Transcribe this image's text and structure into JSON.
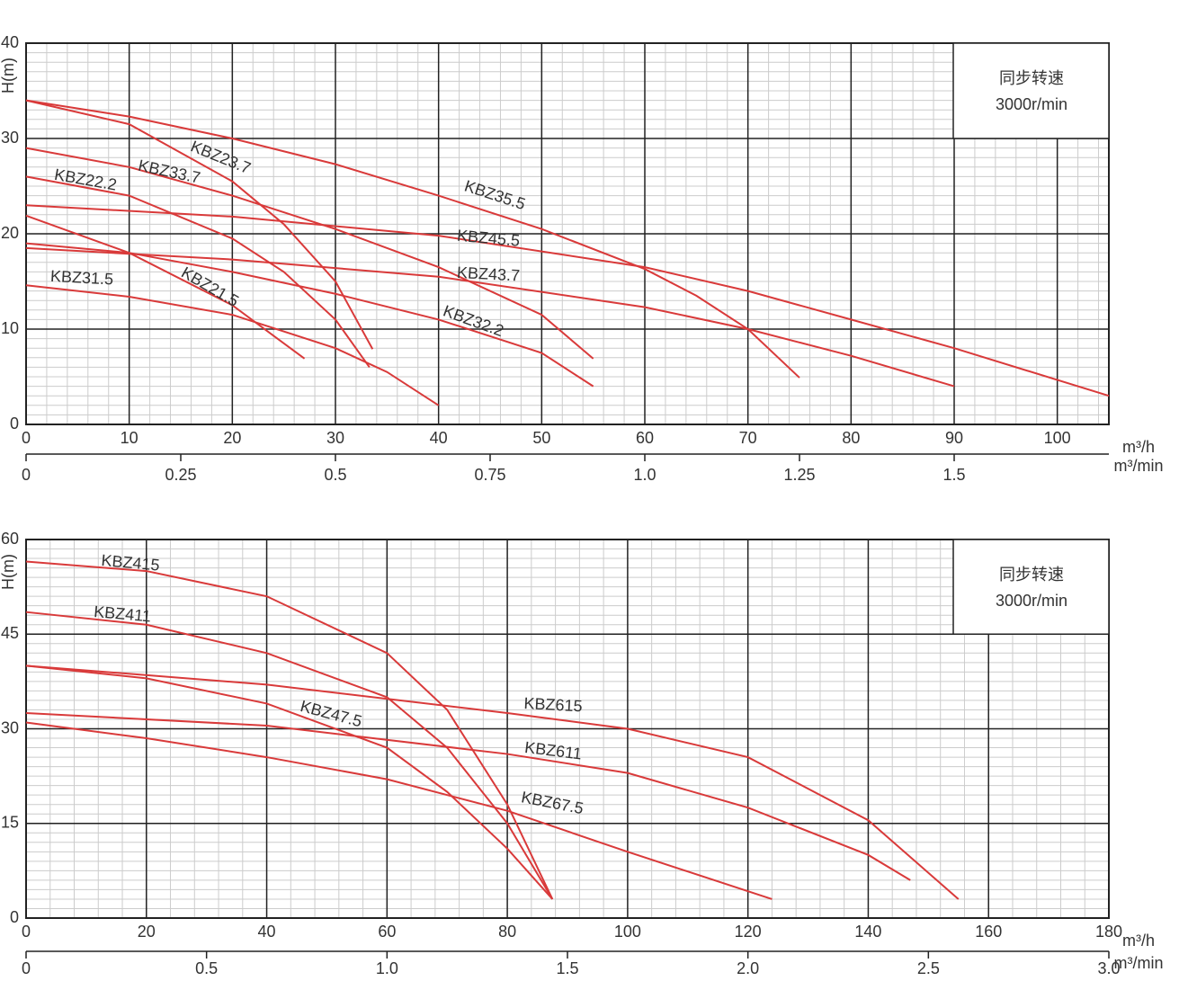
{
  "chart_data": [
    {
      "type": "line",
      "y_label": "H(m)",
      "x_label": "m³/h",
      "x2_label": "m³/min",
      "note": [
        "同步转速",
        "3000r/min"
      ],
      "grid": true,
      "xlim": [
        0,
        105
      ],
      "xticks": [
        0,
        10,
        20,
        30,
        40,
        50,
        60,
        70,
        80,
        90,
        100
      ],
      "ylim": [
        0,
        40
      ],
      "yticks": [
        0,
        10,
        20,
        30,
        40
      ],
      "x2lim": [
        0,
        1.75
      ],
      "x2ticks": [
        0,
        0.25,
        0.5,
        0.75,
        {
          "value": 1,
          "label": "1.0"
        },
        1.25,
        1.5
      ],
      "series": [
        {
          "name": "KBZ23.7",
          "color": "#d93a3a",
          "x": [
            0,
            10,
            20,
            25,
            30,
            33.6
          ],
          "values": [
            34,
            31.5,
            25.5,
            21,
            15,
            7.9
          ]
        },
        {
          "name": "KBZ35.5",
          "color": "#d93a3a",
          "x": [
            0,
            10,
            20,
            30,
            40,
            50,
            60,
            65,
            70,
            75
          ],
          "values": [
            34,
            32.3,
            30,
            27.3,
            24,
            20.5,
            16.3,
            13.5,
            10,
            4.9
          ]
        },
        {
          "name": "KBZ33.7",
          "color": "#d93a3a",
          "x": [
            0,
            10,
            20,
            30,
            40,
            50,
            55
          ],
          "values": [
            29,
            27,
            24,
            20.5,
            16.5,
            11.5,
            6.9
          ]
        },
        {
          "name": "KBZ22.2",
          "color": "#d93a3a",
          "x": [
            0,
            10,
            20,
            25,
            30,
            33.3
          ],
          "values": [
            26,
            24,
            19.5,
            16,
            11,
            6
          ]
        },
        {
          "name": "KBZ45.5",
          "color": "#d93a3a",
          "x": [
            0,
            20,
            40,
            60,
            70,
            80,
            90,
            105
          ],
          "values": [
            23,
            21.8,
            19.8,
            16.5,
            14,
            11,
            8,
            3
          ]
        },
        {
          "name": "KBZ43.7",
          "color": "#d93a3a",
          "x": [
            0,
            20,
            40,
            60,
            70,
            80,
            90
          ],
          "values": [
            18.5,
            17.3,
            15.5,
            12.3,
            10,
            7.2,
            4
          ]
        },
        {
          "name": "KBZ32.2",
          "color": "#d93a3a",
          "x": [
            0,
            10,
            20,
            30,
            40,
            50,
            55
          ],
          "values": [
            19,
            18,
            16,
            13.7,
            11,
            7.5,
            4
          ]
        },
        {
          "name": "KBZ21.5",
          "color": "#d93a3a",
          "x": [
            0,
            10,
            20,
            27
          ],
          "values": [
            21.9,
            18,
            12.5,
            6.9
          ]
        },
        {
          "name": "KBZ31.5",
          "color": "#d93a3a",
          "x": [
            0,
            10,
            20,
            30,
            35,
            40
          ],
          "values": [
            14.6,
            13.4,
            11.5,
            8,
            5.5,
            2
          ]
        }
      ]
    },
    {
      "type": "line",
      "y_label": "H(m)",
      "x_label": "m³/h",
      "x2_label": "m³/min",
      "note": [
        "同步转速",
        "3000r/min"
      ],
      "grid": true,
      "xlim": [
        0,
        180
      ],
      "xticks": [
        0,
        20,
        40,
        60,
        80,
        100,
        120,
        140,
        160,
        180
      ],
      "ylim": [
        0,
        60
      ],
      "yticks": [
        0,
        15,
        30,
        45,
        60
      ],
      "x2lim": [
        0,
        3
      ],
      "x2ticks": [
        0,
        0.5,
        {
          "value": 1,
          "label": "1.0"
        },
        1.5,
        {
          "value": 2,
          "label": "2.0"
        },
        2.5,
        {
          "value": 3,
          "label": "3.0"
        }
      ],
      "series": [
        {
          "name": "KBZ415",
          "color": "#d93a3a",
          "x": [
            0,
            20,
            40,
            60,
            70,
            80,
            87.5
          ],
          "values": [
            56.5,
            55,
            51,
            42,
            33,
            18,
            3
          ]
        },
        {
          "name": "KBZ411",
          "color": "#d93a3a",
          "x": [
            0,
            20,
            40,
            60,
            70,
            80,
            87.5
          ],
          "values": [
            48.5,
            46.5,
            42,
            35,
            27,
            15,
            3
          ]
        },
        {
          "name": "KBZ47.5",
          "color": "#d93a3a",
          "x": [
            0,
            20,
            40,
            60,
            70,
            80,
            87.5
          ],
          "values": [
            40,
            38,
            34,
            27,
            20,
            11,
            3
          ]
        },
        {
          "name": "KBZ615",
          "color": "#d93a3a",
          "x": [
            0,
            40,
            80,
            100,
            120,
            140,
            155
          ],
          "values": [
            40,
            37,
            32.5,
            30,
            25.5,
            15.5,
            3
          ]
        },
        {
          "name": "KBZ611",
          "color": "#d93a3a",
          "x": [
            0,
            40,
            80,
            100,
            120,
            140,
            147
          ],
          "values": [
            32.5,
            30.5,
            26,
            23,
            17.5,
            10,
            6
          ]
        },
        {
          "name": "KBZ67.5",
          "color": "#d93a3a",
          "x": [
            0,
            20,
            40,
            60,
            80,
            100,
            124
          ],
          "values": [
            31,
            28.5,
            25.5,
            22,
            17,
            10.5,
            3
          ]
        }
      ]
    }
  ]
}
